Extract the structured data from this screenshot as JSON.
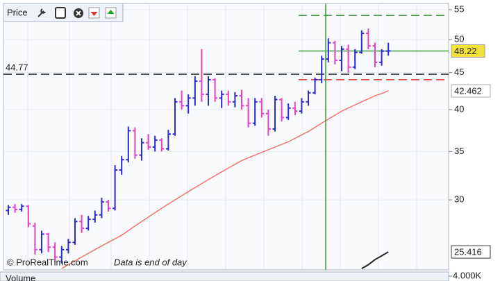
{
  "chart_data": {
    "type": "ohlc",
    "title": "Price",
    "watermark": "© ProRealTime.com",
    "note": "Data is end of day",
    "log_scale": true,
    "ylim": [
      24,
      56.1
    ],
    "yticks": [
      30,
      35,
      40,
      45,
      50,
      55
    ],
    "up_color": "#2b2bd6",
    "down_color": "#e83ec8",
    "bars": [
      [
        29.0,
        29.5,
        28.6,
        29.3
      ],
      [
        29.3,
        29.6,
        28.8,
        29.1
      ],
      [
        29.1,
        29.6,
        28.9,
        29.4
      ],
      [
        29.4,
        29.5,
        27.5,
        27.8
      ],
      [
        27.6,
        27.9,
        25.2,
        25.6
      ],
      [
        25.6,
        27.2,
        25.3,
        26.9
      ],
      [
        26.9,
        27.0,
        25.4,
        25.8
      ],
      [
        25.8,
        26.2,
        24.6,
        25.0
      ],
      [
        25.0,
        25.9,
        24.5,
        25.6
      ],
      [
        25.6,
        26.5,
        25.3,
        26.2
      ],
      [
        26.2,
        28.3,
        26.0,
        28.0
      ],
      [
        28.0,
        28.6,
        27.0,
        27.4
      ],
      [
        27.4,
        28.5,
        27.2,
        28.2
      ],
      [
        28.2,
        29.0,
        27.9,
        28.6
      ],
      [
        28.6,
        30.2,
        28.3,
        29.8
      ],
      [
        29.8,
        30.0,
        28.9,
        29.2
      ],
      [
        29.2,
        33.5,
        29.0,
        33.0
      ],
      [
        33.0,
        34.5,
        32.5,
        34.1
      ],
      [
        34.1,
        37.9,
        33.8,
        37.4
      ],
      [
        37.4,
        37.8,
        34.2,
        34.6
      ],
      [
        34.6,
        36.5,
        34.0,
        36.0
      ],
      [
        36.0,
        37.0,
        35.2,
        35.5
      ],
      [
        35.5,
        36.8,
        35.0,
        36.3
      ],
      [
        36.3,
        36.5,
        35.0,
        35.3
      ],
      [
        35.3,
        37.5,
        35.1,
        37.0
      ],
      [
        37.0,
        41.5,
        36.8,
        41.0
      ],
      [
        41.0,
        42.5,
        40.0,
        40.5
      ],
      [
        40.5,
        42.0,
        39.5,
        41.5
      ],
      [
        41.5,
        44.5,
        40.5,
        43.8
      ],
      [
        43.8,
        48.5,
        41.0,
        42.0
      ],
      [
        42.0,
        44.5,
        40.5,
        44.0
      ],
      [
        44.0,
        44.2,
        41.0,
        41.5
      ],
      [
        41.5,
        42.5,
        40.2,
        42.0
      ],
      [
        42.0,
        42.5,
        40.5,
        41.0
      ],
      [
        41.0,
        42.3,
        40.3,
        41.8
      ],
      [
        41.8,
        42.6,
        40.0,
        40.5
      ],
      [
        40.5,
        41.5,
        37.8,
        38.3
      ],
      [
        38.3,
        41.5,
        38.0,
        41.0
      ],
      [
        41.0,
        41.5,
        39.0,
        39.5
      ],
      [
        39.5,
        40.0,
        36.8,
        37.6
      ],
      [
        37.6,
        41.8,
        37.3,
        41.3
      ],
      [
        41.3,
        41.5,
        38.5,
        39.0
      ],
      [
        39.0,
        40.8,
        38.7,
        40.2
      ],
      [
        40.2,
        41.0,
        39.3,
        39.8
      ],
      [
        39.8,
        41.5,
        39.5,
        41.0
      ],
      [
        41.0,
        42.5,
        40.5,
        42.2
      ],
      [
        42.2,
        44.3,
        42.0,
        44.0
      ],
      [
        44.0,
        47.5,
        43.5,
        47.0
      ],
      [
        47.0,
        50.2,
        46.5,
        49.5
      ],
      [
        49.5,
        49.8,
        46.2,
        46.8
      ],
      [
        46.8,
        49.0,
        45.2,
        48.5
      ],
      [
        48.5,
        49.2,
        45.0,
        45.8
      ],
      [
        45.8,
        48.5,
        45.5,
        48.0
      ],
      [
        48.0,
        51.5,
        47.8,
        51.0
      ],
      [
        51.0,
        51.8,
        48.5,
        49.0
      ],
      [
        49.0,
        49.5,
        45.8,
        46.5
      ],
      [
        46.5,
        48.5,
        46.0,
        48.2
      ],
      [
        48.2,
        49.5,
        47.5,
        48.22
      ]
    ],
    "ma": {
      "color": "#f07272",
      "values": [
        null,
        null,
        null,
        null,
        null,
        null,
        null,
        null,
        24.1,
        24.4,
        24.7,
        25.0,
        25.3,
        25.6,
        25.9,
        26.2,
        26.5,
        26.8,
        27.2,
        27.6,
        28.0,
        28.4,
        28.8,
        29.2,
        29.6,
        30.0,
        30.4,
        30.8,
        31.2,
        31.6,
        32.0,
        32.4,
        32.8,
        33.2,
        33.6,
        34.0,
        34.3,
        34.6,
        34.9,
        35.2,
        35.5,
        35.8,
        36.1,
        36.5,
        36.9,
        37.3,
        37.8,
        38.3,
        38.8,
        39.3,
        39.8,
        40.2,
        40.6,
        41.0,
        41.4,
        41.8,
        42.1,
        42.462
      ]
    },
    "indicator": {
      "color": "#222",
      "values": [
        null,
        null,
        null,
        null,
        null,
        null,
        null,
        null,
        null,
        null,
        null,
        null,
        null,
        null,
        null,
        null,
        null,
        null,
        null,
        null,
        null,
        null,
        null,
        null,
        null,
        null,
        null,
        null,
        null,
        null,
        null,
        null,
        null,
        null,
        null,
        null,
        null,
        null,
        null,
        null,
        null,
        null,
        null,
        null,
        null,
        null,
        null,
        null,
        null,
        null,
        null,
        null,
        null,
        24.1,
        24.4,
        24.8,
        25.1,
        25.416
      ]
    },
    "support": {
      "value": 44.77,
      "color": "#111"
    },
    "price_line": {
      "value": 48.22,
      "color": "#3a9a3a"
    },
    "target": {
      "value": 54.0,
      "color": "#3aa03a"
    },
    "stop": {
      "value": 44.0,
      "color": "#e03030"
    },
    "volume": {
      "title": "Volume",
      "yticks": [
        {
          "value": 4000,
          "label": "4.000K"
        }
      ]
    }
  }
}
